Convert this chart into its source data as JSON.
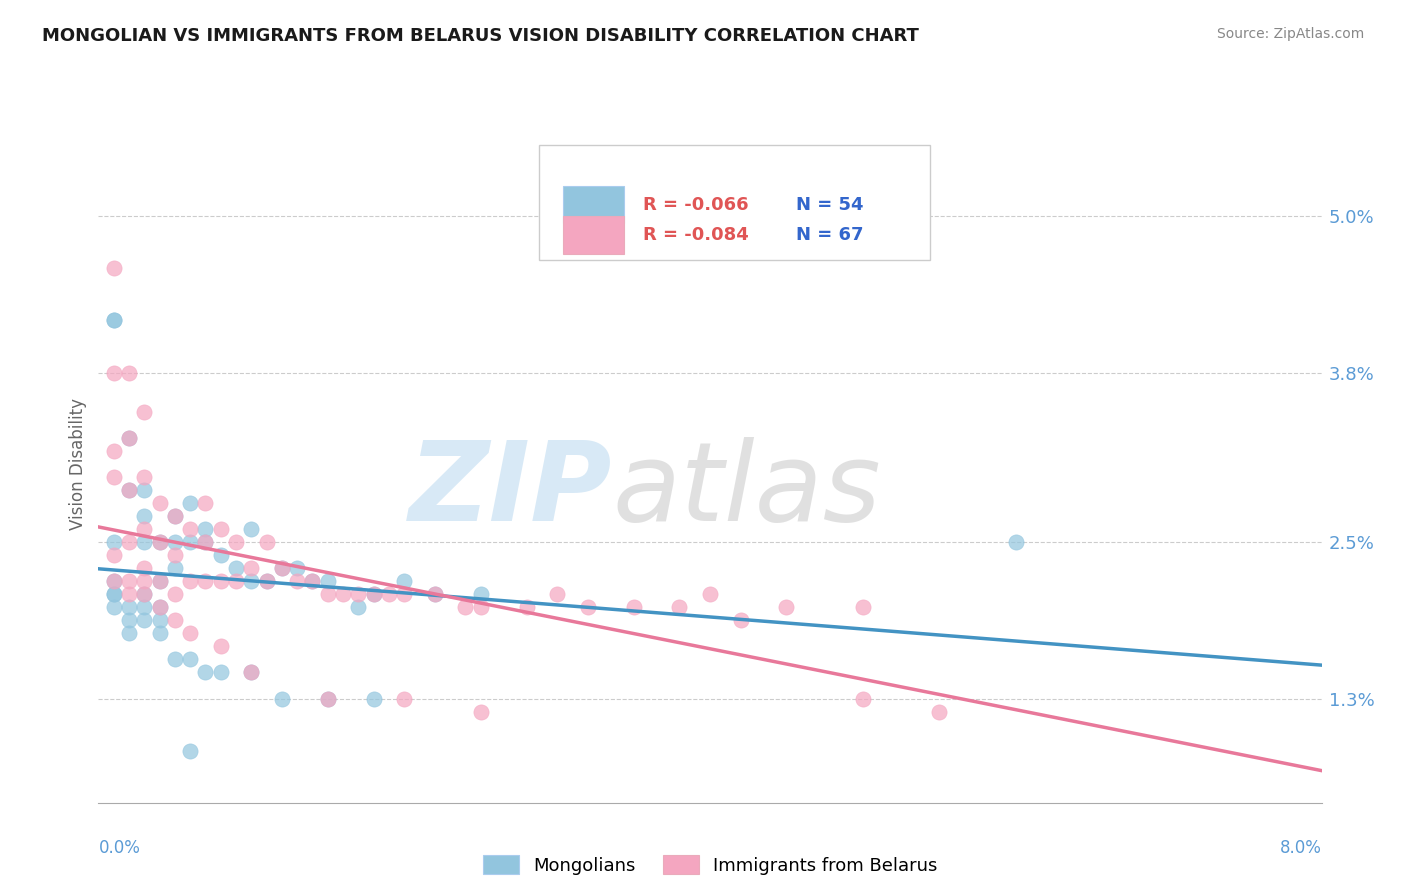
{
  "title": "MONGOLIAN VS IMMIGRANTS FROM BELARUS VISION DISABILITY CORRELATION CHART",
  "source": "Source: ZipAtlas.com",
  "ylabel": "Vision Disability",
  "yticks": [
    "1.3%",
    "2.5%",
    "3.8%",
    "5.0%"
  ],
  "ytick_vals": [
    0.013,
    0.025,
    0.038,
    0.05
  ],
  "xlim": [
    0.0,
    0.08
  ],
  "ylim": [
    0.005,
    0.057
  ],
  "legend_blue_label": "Mongolians",
  "legend_pink_label": "Immigrants from Belarus",
  "legend_R_blue": "R = -0.066",
  "legend_N_blue": "N = 54",
  "legend_R_pink": "R = -0.084",
  "legend_N_pink": "N = 67",
  "color_blue": "#92c5de",
  "color_pink": "#f4a6c0",
  "color_blue_dark": "#4393c3",
  "color_pink_dark": "#e8789a",
  "mongolian_x": [
    0.001,
    0.001,
    0.002,
    0.002,
    0.003,
    0.003,
    0.003,
    0.004,
    0.004,
    0.005,
    0.005,
    0.005,
    0.006,
    0.006,
    0.007,
    0.007,
    0.008,
    0.009,
    0.01,
    0.01,
    0.011,
    0.012,
    0.013,
    0.014,
    0.015,
    0.017,
    0.018,
    0.02,
    0.022,
    0.025,
    0.001,
    0.001,
    0.001,
    0.002,
    0.002,
    0.003,
    0.003,
    0.004,
    0.004,
    0.005,
    0.006,
    0.007,
    0.008,
    0.01,
    0.012,
    0.015,
    0.018,
    0.001,
    0.002,
    0.003,
    0.004,
    0.006,
    0.06,
    0.001
  ],
  "mongolian_y": [
    0.042,
    0.042,
    0.033,
    0.029,
    0.029,
    0.027,
    0.025,
    0.025,
    0.022,
    0.027,
    0.025,
    0.023,
    0.028,
    0.025,
    0.026,
    0.025,
    0.024,
    0.023,
    0.026,
    0.022,
    0.022,
    0.023,
    0.023,
    0.022,
    0.022,
    0.02,
    0.021,
    0.022,
    0.021,
    0.021,
    0.022,
    0.021,
    0.02,
    0.019,
    0.018,
    0.02,
    0.019,
    0.019,
    0.018,
    0.016,
    0.016,
    0.015,
    0.015,
    0.015,
    0.013,
    0.013,
    0.013,
    0.021,
    0.02,
    0.021,
    0.02,
    0.009,
    0.025,
    0.025
  ],
  "belarus_x": [
    0.001,
    0.001,
    0.001,
    0.001,
    0.002,
    0.002,
    0.002,
    0.002,
    0.003,
    0.003,
    0.003,
    0.004,
    0.004,
    0.004,
    0.005,
    0.005,
    0.005,
    0.006,
    0.006,
    0.007,
    0.007,
    0.007,
    0.008,
    0.008,
    0.009,
    0.009,
    0.01,
    0.011,
    0.011,
    0.012,
    0.013,
    0.014,
    0.015,
    0.016,
    0.017,
    0.018,
    0.019,
    0.02,
    0.022,
    0.024,
    0.025,
    0.028,
    0.03,
    0.032,
    0.035,
    0.038,
    0.04,
    0.042,
    0.045,
    0.05,
    0.001,
    0.002,
    0.003,
    0.003,
    0.004,
    0.005,
    0.006,
    0.008,
    0.01,
    0.015,
    0.02,
    0.025,
    0.05,
    0.055,
    0.001,
    0.002,
    0.003
  ],
  "belarus_y": [
    0.046,
    0.032,
    0.03,
    0.024,
    0.033,
    0.029,
    0.025,
    0.022,
    0.03,
    0.026,
    0.023,
    0.028,
    0.025,
    0.022,
    0.027,
    0.024,
    0.021,
    0.026,
    0.022,
    0.028,
    0.025,
    0.022,
    0.026,
    0.022,
    0.025,
    0.022,
    0.023,
    0.025,
    0.022,
    0.023,
    0.022,
    0.022,
    0.021,
    0.021,
    0.021,
    0.021,
    0.021,
    0.021,
    0.021,
    0.02,
    0.02,
    0.02,
    0.021,
    0.02,
    0.02,
    0.02,
    0.021,
    0.019,
    0.02,
    0.02,
    0.022,
    0.021,
    0.022,
    0.021,
    0.02,
    0.019,
    0.018,
    0.017,
    0.015,
    0.013,
    0.013,
    0.012,
    0.013,
    0.012,
    0.038,
    0.038,
    0.035
  ]
}
